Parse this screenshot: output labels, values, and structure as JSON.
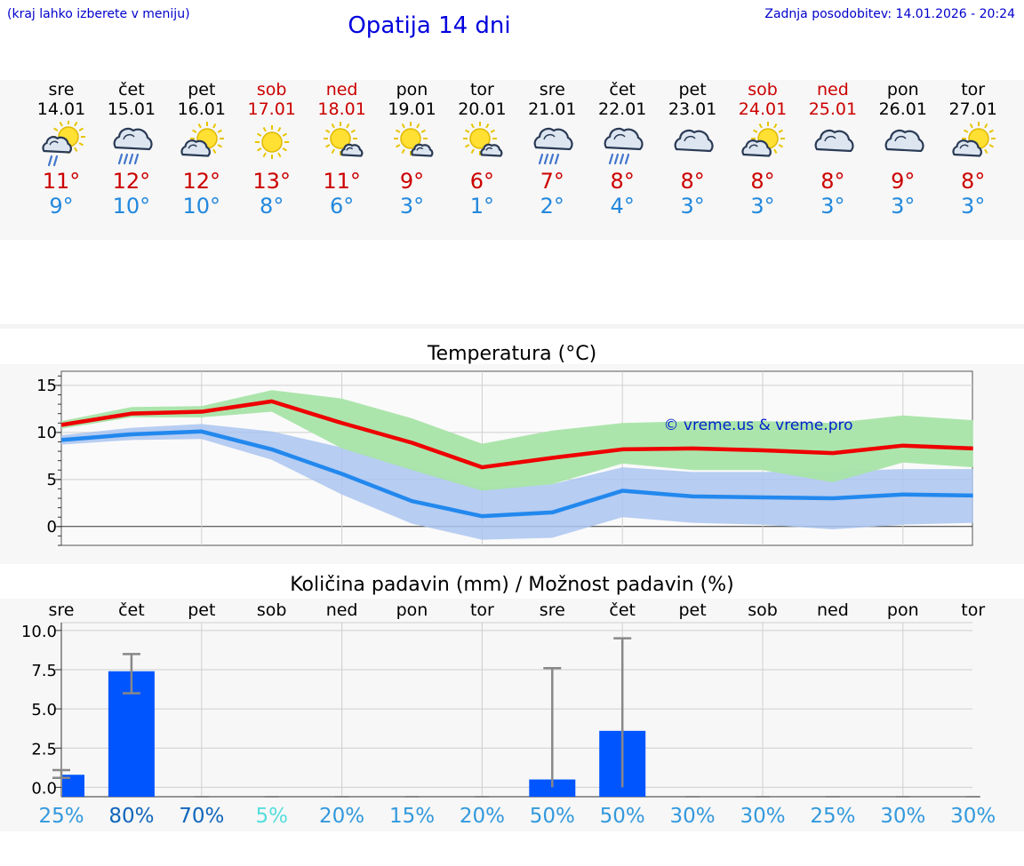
{
  "header": {
    "hint": "(kraj lahko izberete v meniju)",
    "title": "Opatija 14 dni",
    "updated": "Zadnja posodobitev: 14.01.2026 - 20:24"
  },
  "colors": {
    "max": "#ee0000",
    "min": "#2288ee",
    "max_band": "#a8e4a8",
    "min_band": "#aac4f0",
    "bar": "#0055ff",
    "whisker": "#888888"
  },
  "days": [
    {
      "name": "sre",
      "date": "14.01",
      "weekend": false,
      "icon": "sun-cloud-rain-icon",
      "max": "11°",
      "min": "9°"
    },
    {
      "name": "čet",
      "date": "15.01",
      "weekend": false,
      "icon": "cloud-rain-icon",
      "max": "12°",
      "min": "10°"
    },
    {
      "name": "pet",
      "date": "16.01",
      "weekend": false,
      "icon": "sun-cloud-icon",
      "max": "12°",
      "min": "10°"
    },
    {
      "name": "sob",
      "date": "17.01",
      "weekend": true,
      "icon": "sun-icon",
      "max": "13°",
      "min": "8°"
    },
    {
      "name": "ned",
      "date": "18.01",
      "weekend": true,
      "icon": "sun-small-cloud-icon",
      "max": "11°",
      "min": "6°"
    },
    {
      "name": "pon",
      "date": "19.01",
      "weekend": false,
      "icon": "sun-small-cloud-icon",
      "max": "9°",
      "min": "3°"
    },
    {
      "name": "tor",
      "date": "20.01",
      "weekend": false,
      "icon": "sun-small-cloud-icon",
      "max": "6°",
      "min": "1°"
    },
    {
      "name": "sre",
      "date": "21.01",
      "weekend": false,
      "icon": "cloud-rain-icon",
      "max": "7°",
      "min": "2°"
    },
    {
      "name": "čet",
      "date": "22.01",
      "weekend": false,
      "icon": "cloud-rain-icon",
      "max": "8°",
      "min": "4°"
    },
    {
      "name": "pet",
      "date": "23.01",
      "weekend": false,
      "icon": "cloud-icon",
      "max": "8°",
      "min": "3°"
    },
    {
      "name": "sob",
      "date": "24.01",
      "weekend": true,
      "icon": "sun-cloud-icon",
      "max": "8°",
      "min": "3°"
    },
    {
      "name": "ned",
      "date": "25.01",
      "weekend": true,
      "icon": "cloud-icon",
      "max": "8°",
      "min": "3°"
    },
    {
      "name": "pon",
      "date": "26.01",
      "weekend": false,
      "icon": "cloud-icon",
      "max": "9°",
      "min": "3°"
    },
    {
      "name": "tor",
      "date": "27.01",
      "weekend": false,
      "icon": "sun-cloud-icon",
      "max": "8°",
      "min": "3°"
    }
  ],
  "chart_data": [
    {
      "type": "line",
      "title": "Temperatura (°C)",
      "watermark": "© vreme.us & vreme.pro",
      "ylim": [
        -2,
        16.5
      ],
      "yticks": [
        0,
        5,
        10,
        15
      ],
      "x": [
        0,
        1,
        2,
        3,
        4,
        5,
        6,
        7,
        8,
        9,
        10,
        11,
        12,
        13
      ],
      "series": [
        {
          "name": "max",
          "values": [
            10.8,
            12.0,
            12.2,
            13.3,
            11.0,
            8.9,
            6.3,
            7.3,
            8.2,
            8.3,
            8.1,
            7.8,
            8.6,
            8.3
          ],
          "band_high": [
            11.2,
            12.7,
            12.8,
            14.5,
            13.6,
            11.5,
            8.8,
            10.2,
            11.0,
            11.2,
            11.2,
            11.0,
            11.8,
            11.3
          ],
          "band_low": [
            10.4,
            11.6,
            11.6,
            12.2,
            8.3,
            6.0,
            3.8,
            4.5,
            6.7,
            6.0,
            6.0,
            4.7,
            6.8,
            6.3
          ]
        },
        {
          "name": "min",
          "values": [
            9.2,
            9.8,
            10.1,
            8.2,
            5.6,
            2.7,
            1.1,
            1.5,
            3.8,
            3.2,
            3.1,
            3.0,
            3.4,
            3.3
          ],
          "band_high": [
            9.7,
            10.5,
            10.9,
            10.1,
            8.4,
            6.2,
            4.2,
            4.5,
            6.3,
            5.8,
            5.8,
            5.9,
            6.1,
            6.1
          ],
          "band_low": [
            8.7,
            9.2,
            9.3,
            7.1,
            3.4,
            0.3,
            -1.4,
            -1.2,
            1.0,
            0.4,
            0.2,
            -0.3,
            0.2,
            0.4
          ]
        }
      ]
    },
    {
      "type": "bar",
      "title": "Količina padavin (mm) / Možnost padavin (%)",
      "categories": [
        "sre",
        "čet",
        "pet",
        "sob",
        "ned",
        "pon",
        "tor",
        "sre",
        "čet",
        "pet",
        "sob",
        "ned",
        "pon",
        "tor"
      ],
      "values": [
        0.8,
        7.4,
        0,
        0,
        0,
        0,
        0,
        0.5,
        3.6,
        0,
        0,
        0,
        0,
        0
      ],
      "err_low": [
        0.6,
        6.0,
        0,
        0,
        0,
        0,
        0,
        0,
        0,
        0,
        0,
        0,
        0,
        0
      ],
      "err_high": [
        1.1,
        8.5,
        0,
        0,
        0,
        0,
        0,
        7.6,
        9.5,
        0,
        0,
        0,
        0,
        0
      ],
      "ylim": [
        -0.6,
        10.5
      ],
      "yticks": [
        "0.0",
        "2.5",
        "5.0",
        "7.5",
        "10.0"
      ],
      "chance": [
        "25%",
        "80%",
        "70%",
        "5%",
        "20%",
        "15%",
        "20%",
        "50%",
        "50%",
        "30%",
        "30%",
        "25%",
        "30%",
        "30%"
      ],
      "chance_colors": [
        "#3399dd",
        "#1166bb",
        "#1166bb",
        "#55dddd",
        "#3399dd",
        "#3399dd",
        "#3399dd",
        "#3399dd",
        "#3399dd",
        "#3399dd",
        "#3399dd",
        "#3399dd",
        "#3399dd",
        "#3399dd"
      ]
    }
  ]
}
